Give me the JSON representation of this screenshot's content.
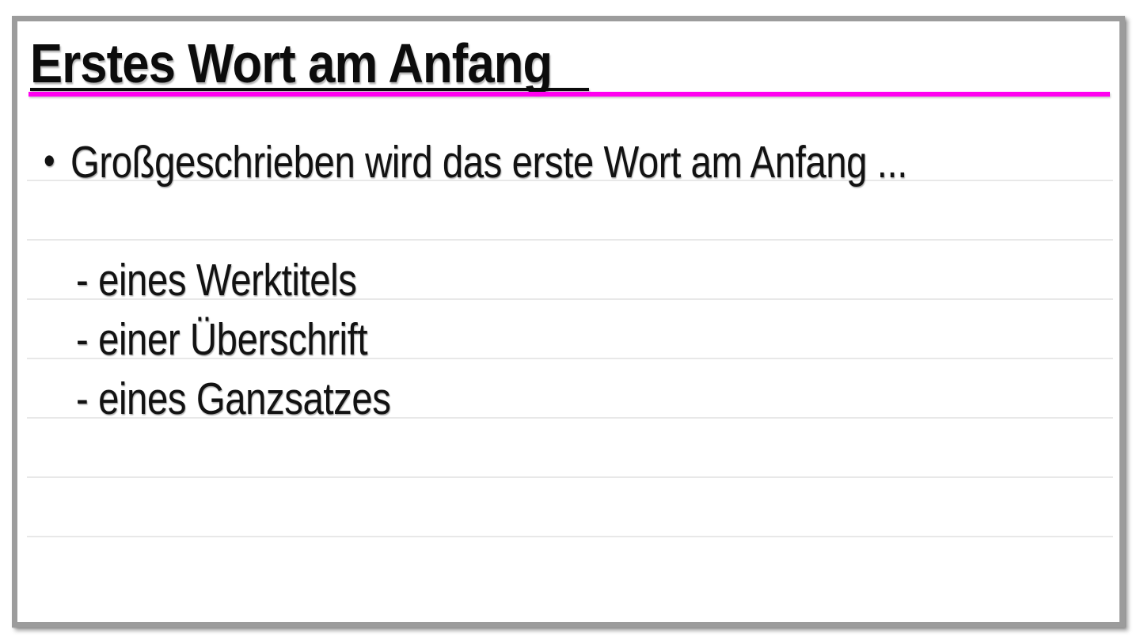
{
  "slide": {
    "title": "Erstes Wort am Anfang",
    "accent_color": "#ff00f0",
    "bullet": {
      "marker": "•",
      "text": "Großgeschrieben wird das erste Wort am Anfang ..."
    },
    "sub_items": [
      {
        "label": "- eines Werktitels"
      },
      {
        "label": "- einer Überschrift"
      },
      {
        "label": "- eines Ganzsatzes"
      }
    ]
  }
}
